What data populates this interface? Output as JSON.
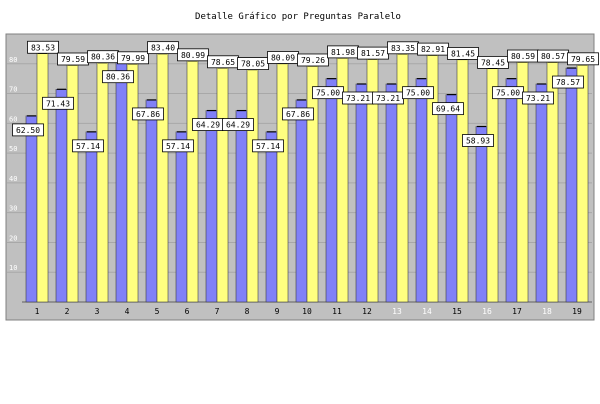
{
  "chart_data": {
    "type": "bar",
    "title": "Detalle Gráfico por Preguntas Paralelo",
    "categories": [
      "1",
      "2",
      "3",
      "4",
      "5",
      "6",
      "7",
      "8",
      "9",
      "10",
      "11",
      "12",
      "13",
      "14",
      "15",
      "16",
      "17",
      "18",
      "19"
    ],
    "ylim": [
      0,
      90
    ],
    "yticks": [
      10,
      20,
      30,
      40,
      50,
      60,
      70,
      80
    ],
    "grid": true,
    "series": [
      {
        "color": "#8080f8",
        "values": [
          62.5,
          71.43,
          57.14,
          80.36,
          67.86,
          57.14,
          64.29,
          64.29,
          57.14,
          67.86,
          75.0,
          73.21,
          73.21,
          75.0,
          69.64,
          58.93,
          75.0,
          73.21,
          78.57
        ],
        "labels": [
          "62.50",
          "71.43",
          "57.14",
          "80.36",
          "67.86",
          "57.14",
          "64.29",
          "64.29",
          "57.14",
          "67.86",
          "75.00",
          "73.21",
          "73.21",
          "75.00",
          "69.64",
          "58.93",
          "75.00",
          "73.21",
          "78.57"
        ]
      },
      {
        "color": "#ffff80",
        "values": [
          83.53,
          79.59,
          80.36,
          79.99,
          83.4,
          80.99,
          78.65,
          78.05,
          80.09,
          79.26,
          81.98,
          81.57,
          83.35,
          82.91,
          81.45,
          78.45,
          80.59,
          80.57,
          79.65
        ],
        "labels": [
          "83.53",
          "79.59",
          "80.36",
          "79.99",
          "83.40",
          "80.99",
          "78.65",
          "78.05",
          "80.09",
          "79.26",
          "81.98",
          "81.57",
          "83.35",
          "82.91",
          "81.45",
          "78.45",
          "80.59",
          "80.57",
          "79.65"
        ]
      }
    ],
    "colors": {
      "plot_background": "#c0c0c0",
      "grid": "#a8a8a8",
      "tick_label": "#000000",
      "tick_label_dim": "#ffffff"
    }
  }
}
